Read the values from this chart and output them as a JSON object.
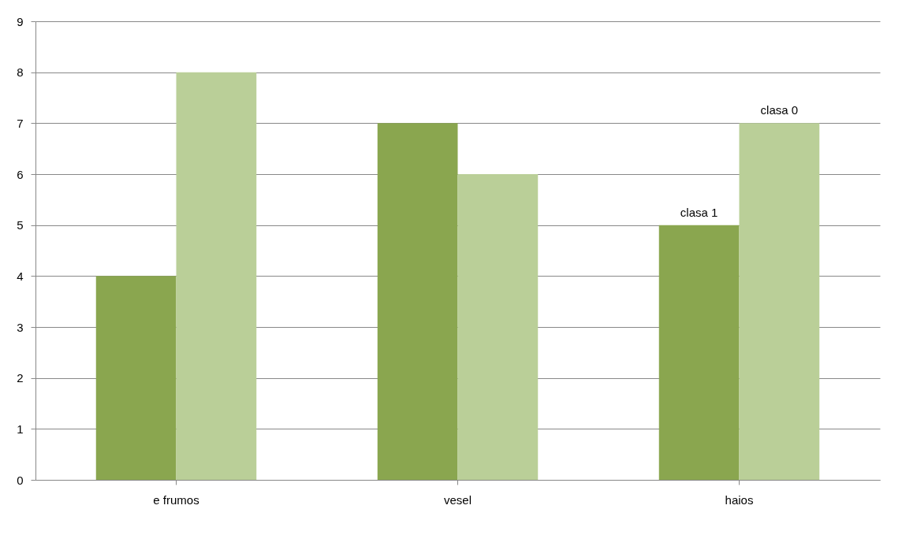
{
  "chart_data": {
    "type": "bar",
    "categories": [
      "e frumos",
      "vesel",
      "haios"
    ],
    "series": [
      {
        "name": "clasa 1",
        "color": "#8aa64f",
        "values": [
          4,
          7,
          5
        ]
      },
      {
        "name": "clasa 0",
        "color": "#bacf98",
        "values": [
          8,
          6,
          7
        ]
      }
    ],
    "ylim": [
      0,
      9
    ],
    "yticks": [
      0,
      1,
      2,
      3,
      4,
      5,
      6,
      7,
      8,
      9
    ],
    "grid": "y",
    "legend": false
  }
}
